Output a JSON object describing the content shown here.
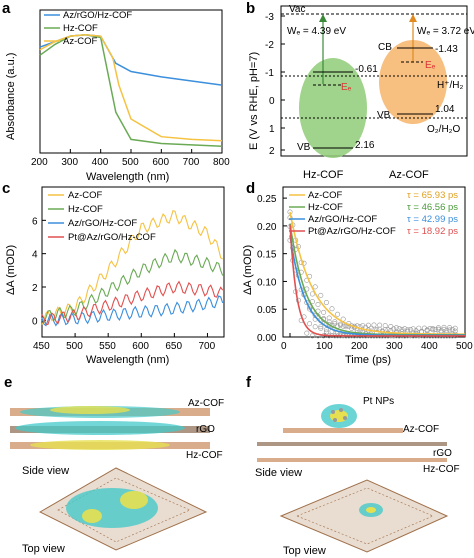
{
  "panels": {
    "a": {
      "label": "a",
      "xlabel": "Wavelength (nm)",
      "ylabel": "Absorbance (a.u.)",
      "xticks": [
        "200",
        "300",
        "400",
        "500",
        "600",
        "700",
        "800"
      ],
      "legend": [
        "Az/rGO/Hz-COF",
        "Hz-COF",
        "Az-COF"
      ]
    },
    "b": {
      "label": "b",
      "ylabel": "E (V vs RHE, pH=7)",
      "yticks": [
        "-3",
        "-2",
        "-1",
        "0",
        "1",
        "2"
      ],
      "vac": "Vac",
      "hz_wf": "Wₑ = 4.39 eV",
      "az_wf": "Wₑ = 3.72 eV",
      "hz_cb": "-0.61",
      "hz_vb": "2.16",
      "az_cb": "-1.43",
      "az_vb": "1.04",
      "cb": "CB",
      "vb": "VB",
      "ef": "Eₑ",
      "h_pair": "H⁺/H₂",
      "o_pair": "O₂/H₂O",
      "hz_name": "Hz-COF",
      "az_name": "Az-COF"
    },
    "c": {
      "label": "c",
      "xlabel": "Wavelength (nm)",
      "ylabel": "ΔA (mOD)",
      "xticks": [
        "450",
        "500",
        "550",
        "600",
        "650",
        "700"
      ],
      "yticks": [
        "0",
        "2",
        "4",
        "6"
      ],
      "legend": [
        "Az-COF",
        "Hz-COF",
        "Az/rGO/Hz-COF",
        "Pt@Az/rGO/Hz-COF"
      ]
    },
    "d": {
      "label": "d",
      "xlabel": "Time (ps)",
      "ylabel": "ΔA (mOD)",
      "xticks": [
        "0",
        "100",
        "200",
        "300",
        "400",
        "500"
      ],
      "yticks": [
        "0.00",
        "0.05",
        "0.10",
        "0.15",
        "0.20",
        "0.25"
      ],
      "legend": [
        "Az-COF",
        "Hz-COF",
        "Az/rGO/Hz-COF",
        "Pt@Az/rGO/Hz-COF"
      ],
      "taus": [
        "τ = 65.93 ps",
        "τ = 46.56 ps",
        "τ = 42.99 ps",
        "τ = 18.92 ps"
      ]
    },
    "e": {
      "label": "e",
      "az": "Az-COF",
      "rgo": "rGO",
      "hz": "Hz-COF",
      "side": "Side view",
      "top": "Top view"
    },
    "f": {
      "label": "f",
      "pt": "Pt NPs",
      "az": "Az-COF",
      "rgo": "rGO",
      "hz": "Hz-COF",
      "side": "Side view",
      "top": "Top view"
    }
  },
  "colors": {
    "az": "#f5c242",
    "hz": "#6aaa55",
    "azrgo": "#3b8fdc",
    "pt": "#e05050"
  },
  "chart_data": [
    {
      "type": "line",
      "panel": "a",
      "xlabel": "Wavelength (nm)",
      "ylabel": "Absorbance (a.u.)",
      "xlim": [
        200,
        800
      ],
      "series": [
        {
          "name": "Az/rGO/Hz-COF",
          "x": [
            200,
            250,
            300,
            350,
            400,
            430,
            450,
            500,
            600,
            700,
            800
          ],
          "y": [
            0.78,
            0.82,
            0.86,
            0.87,
            0.86,
            0.74,
            0.66,
            0.6,
            0.56,
            0.53,
            0.5
          ]
        },
        {
          "name": "Hz-COF",
          "x": [
            200,
            250,
            300,
            350,
            400,
            430,
            450,
            500,
            600,
            700,
            800
          ],
          "y": [
            0.72,
            0.8,
            0.86,
            0.87,
            0.85,
            0.52,
            0.3,
            0.1,
            0.07,
            0.06,
            0.05
          ]
        },
        {
          "name": "Az-COF",
          "x": [
            200,
            250,
            300,
            350,
            400,
            440,
            460,
            500,
            600,
            700,
            800
          ],
          "y": [
            0.76,
            0.82,
            0.86,
            0.87,
            0.86,
            0.7,
            0.5,
            0.25,
            0.12,
            0.1,
            0.09
          ]
        }
      ]
    },
    {
      "type": "line",
      "panel": "c",
      "xlabel": "Wavelength (nm)",
      "ylabel": "ΔA (mOD)",
      "xlim": [
        450,
        725
      ],
      "ylim": [
        -1,
        8
      ],
      "series": [
        {
          "name": "Az-COF",
          "x": [
            450,
            500,
            550,
            600,
            650,
            700,
            725
          ],
          "y": [
            0.1,
            0.8,
            3.0,
            5.5,
            6.3,
            5.2,
            3.8
          ]
        },
        {
          "name": "Hz-COF",
          "x": [
            450,
            500,
            550,
            600,
            650,
            700,
            725
          ],
          "y": [
            0.2,
            0.6,
            1.8,
            3.0,
            3.9,
            3.4,
            3.0
          ]
        },
        {
          "name": "Az/rGO/Hz-COF",
          "x": [
            450,
            500,
            550,
            600,
            650,
            700,
            725
          ],
          "y": [
            0.0,
            0.1,
            0.3,
            0.5,
            0.7,
            1.0,
            1.2
          ]
        },
        {
          "name": "Pt@Az/rGO/Hz-COF",
          "x": [
            450,
            500,
            550,
            600,
            650,
            700,
            725
          ],
          "y": [
            0.0,
            0.3,
            0.9,
            1.5,
            2.0,
            1.8,
            1.6
          ]
        }
      ]
    },
    {
      "type": "scatter",
      "panel": "d",
      "xlabel": "Time (ps)",
      "ylabel": "ΔA (mOD)",
      "xlim": [
        -20,
        500
      ],
      "ylim": [
        0,
        0.27
      ],
      "series": [
        {
          "name": "Az-COF",
          "tau": 65.93,
          "a0": 0.22,
          "c": 0.005
        },
        {
          "name": "Hz-COF",
          "tau": 46.56,
          "a0": 0.2,
          "c": 0.004
        },
        {
          "name": "Az/rGO/Hz-COF",
          "tau": 42.99,
          "a0": 0.18,
          "c": 0.003
        },
        {
          "name": "Pt@Az/rGO/Hz-COF",
          "tau": 18.92,
          "a0": 0.2,
          "c": 0.002
        }
      ]
    }
  ]
}
